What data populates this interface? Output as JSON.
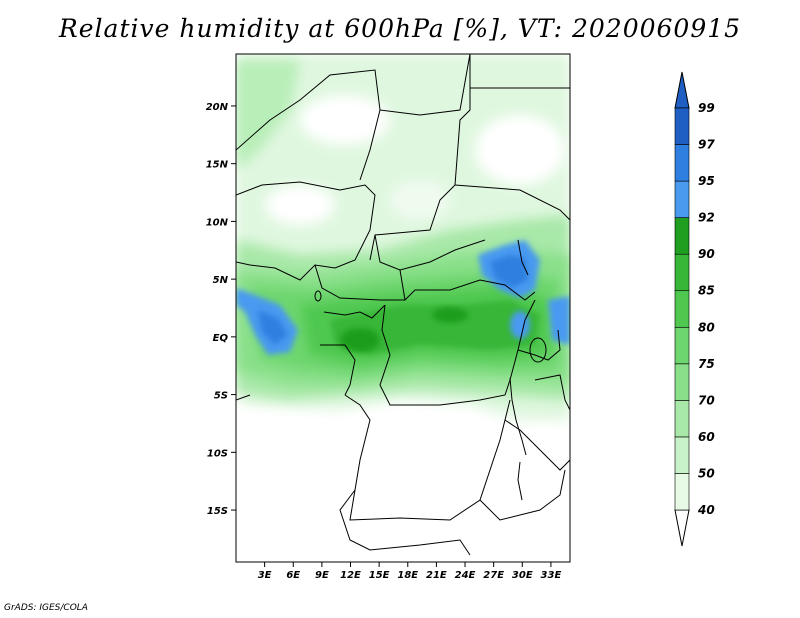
{
  "title": "Relative humidity at 600hPa [%], VT: 2020060915",
  "credit": "GrADS: IGES/COLA",
  "map": {
    "variable": "Relative humidity",
    "level": "600hPa",
    "units": "%",
    "valid_time": "2020060915",
    "lon_range": [
      0,
      35
    ],
    "lat_range": [
      -19.5,
      24.5
    ],
    "lat_ticks": [
      "20N",
      "15N",
      "10N",
      "5N",
      "EQ",
      "5S",
      "10S",
      "15S"
    ],
    "lon_ticks": [
      "3E",
      "6E",
      "9E",
      "12E",
      "15E",
      "18E",
      "21E",
      "24E",
      "27E",
      "30E",
      "33E"
    ]
  },
  "legend": {
    "levels": [
      "40",
      "50",
      "60",
      "70",
      "75",
      "80",
      "85",
      "90",
      "92",
      "95",
      "97",
      "99"
    ],
    "colors": [
      "#ffffff",
      "#e6fae6",
      "#c8f2c8",
      "#a8e8a8",
      "#8ae08a",
      "#6ed66e",
      "#50c850",
      "#37b637",
      "#1f9e1f",
      "#4a9af0",
      "#2f7fe0",
      "#1f5fc4"
    ]
  }
}
